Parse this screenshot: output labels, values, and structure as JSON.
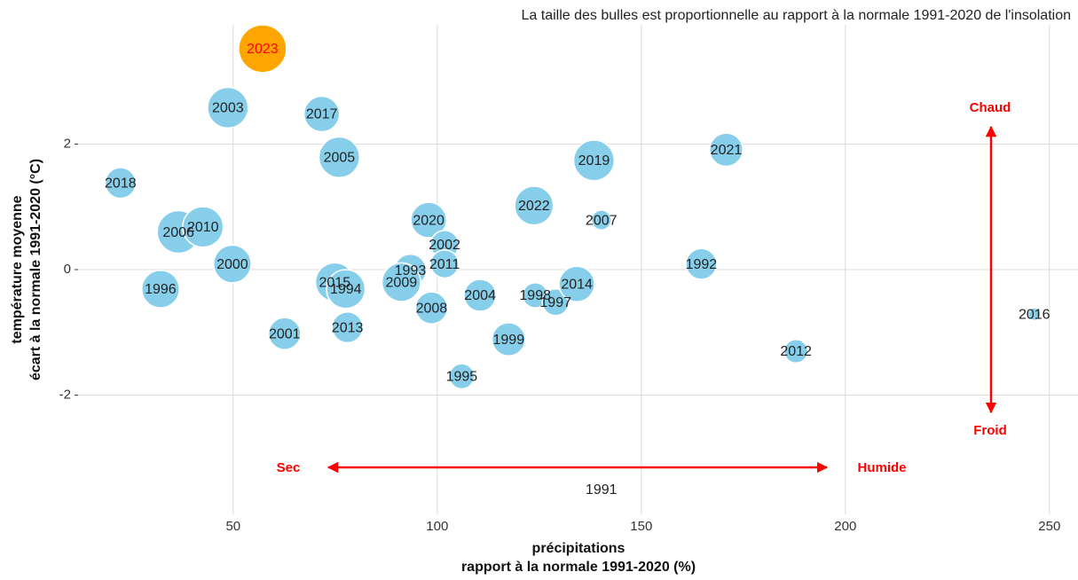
{
  "chart_data": {
    "type": "bubble",
    "subtitle": "La taille des bulles est proportionnelle au rapport à la normale 1991-2020 de l'insolation",
    "x_label": [
      "précipitations",
      "rapport à la normale 1991-2020 (%)"
    ],
    "y_label": [
      "température moyenne",
      "écart à la normale 1991-2020 (°C)"
    ],
    "annotations": [
      "Chaud",
      "Froid",
      "Sec",
      "Humide"
    ],
    "annotation_color": "#ff0000",
    "xlim": [
      12,
      257
    ],
    "xticks": [
      50,
      100,
      150,
      200,
      250
    ],
    "ylim": [
      -3.9,
      3.9
    ],
    "yticks": [
      -2,
      0,
      2
    ],
    "grid": true,
    "labels": [
      "2023",
      "2003",
      "2017",
      "2005",
      "2018",
      "2006",
      "2010",
      "2000",
      "1996",
      "2020",
      "2002",
      "2011",
      "1993",
      "2009",
      "2015",
      "1994",
      "2013",
      "2001",
      "2008",
      "2004",
      "1995",
      "1999",
      "1998",
      "1997",
      "2014",
      "2022",
      "2007",
      "2019",
      "1992",
      "2021",
      "2012",
      "2016",
      "1991"
    ],
    "x": [
      57.2,
      48.7,
      71.7,
      76.0,
      22.4,
      36.6,
      42.6,
      49.8,
      32.2,
      97.9,
      101.8,
      101.8,
      93.4,
      91.2,
      74.9,
      77.6,
      78.0,
      62.6,
      98.6,
      110.5,
      106.0,
      117.5,
      124.0,
      129.0,
      134.2,
      123.7,
      140.2,
      138.4,
      164.7,
      170.8,
      187.9,
      246.3,
      140.2
    ],
    "y": [
      3.52,
      2.58,
      2.48,
      1.79,
      1.38,
      0.6,
      0.68,
      0.09,
      -0.31,
      0.79,
      0.4,
      0.09,
      -0.01,
      -0.2,
      -0.2,
      -0.31,
      -0.92,
      -1.02,
      -0.61,
      -0.41,
      -1.7,
      -1.11,
      -0.41,
      -0.52,
      -0.23,
      1.02,
      0.79,
      1.74,
      0.09,
      1.91,
      -1.3,
      -0.71,
      -3.5
    ],
    "sizes": [
      114,
      106,
      101,
      106,
      97,
      108,
      106,
      103,
      103,
      101,
      95,
      95,
      98,
      104,
      104,
      104,
      97,
      98,
      98,
      98,
      93,
      99,
      93,
      94,
      101,
      104,
      90,
      106,
      97,
      99,
      92,
      87,
      85
    ],
    "colors": [
      "#ffa500",
      "#87ceeb",
      "#87ceeb",
      "#87ceeb",
      "#87ceeb",
      "#87ceeb",
      "#87ceeb",
      "#87ceeb",
      "#87ceeb",
      "#87ceeb",
      "#87ceeb",
      "#87ceeb",
      "#87ceeb",
      "#87ceeb",
      "#87ceeb",
      "#87ceeb",
      "#87ceeb",
      "#87ceeb",
      "#87ceeb",
      "#87ceeb",
      "#87ceeb",
      "#87ceeb",
      "#87ceeb",
      "#87ceeb",
      "#87ceeb",
      "#87ceeb",
      "#87ceeb",
      "#87ceeb",
      "#87ceeb",
      "#87ceeb",
      "#87ceeb",
      "#87ceeb",
      "#87ceeb"
    ],
    "label_colors": [
      "#ff0000",
      "#222222",
      "#222222",
      "#222222",
      "#222222",
      "#222222",
      "#222222",
      "#222222",
      "#222222",
      "#222222",
      "#222222",
      "#222222",
      "#222222",
      "#222222",
      "#222222",
      "#222222",
      "#222222",
      "#222222",
      "#222222",
      "#222222",
      "#222222",
      "#222222",
      "#222222",
      "#222222",
      "#222222",
      "#222222",
      "#222222",
      "#222222",
      "#222222",
      "#222222",
      "#222222",
      "#222222",
      "#222222"
    ]
  }
}
